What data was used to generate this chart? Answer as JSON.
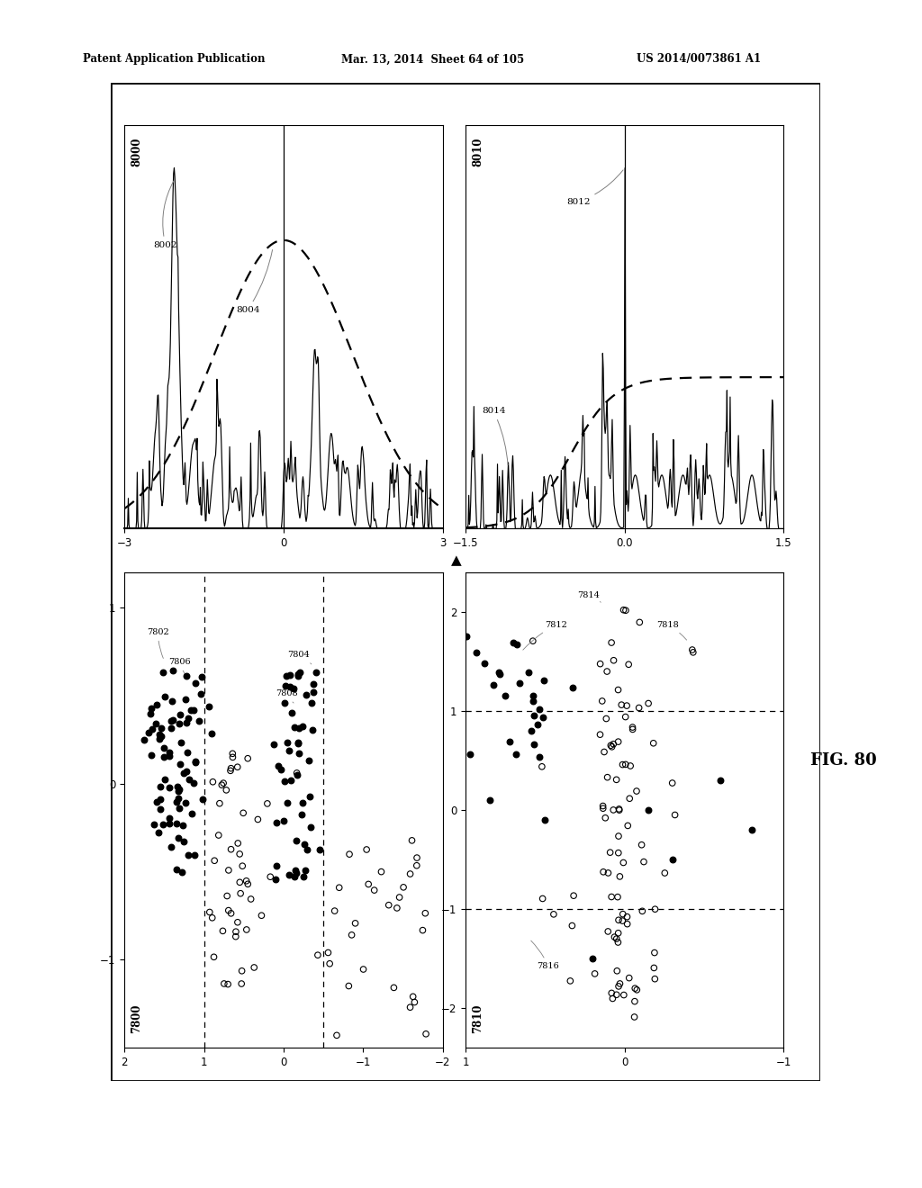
{
  "header_left": "Patent Application Publication",
  "header_mid": "Mar. 13, 2014  Sheet 64 of 105",
  "header_right": "US 2014/0073861 A1",
  "fig_label": "FIG. 80",
  "background_color": "#ffffff",
  "top_left_label": "8000",
  "top_right_label": "8010",
  "bottom_left_label": "7800",
  "bottom_right_label": "7810"
}
